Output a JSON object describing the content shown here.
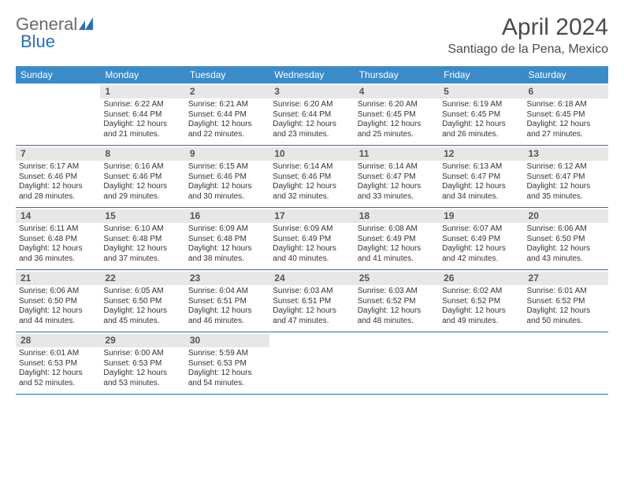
{
  "logo": {
    "general": "General",
    "blue": "Blue"
  },
  "title": "April 2024",
  "location": "Santiago de la Pena, Mexico",
  "colors": {
    "header_bg": "#3b8bc9",
    "header_fg": "#ffffff",
    "daynum_bg": "#e7e7e7",
    "row_border": "#2a6fb5",
    "text": "#333333"
  },
  "dow": [
    "Sunday",
    "Monday",
    "Tuesday",
    "Wednesday",
    "Thursday",
    "Friday",
    "Saturday"
  ],
  "weeks": [
    [
      {
        "empty": true
      },
      {
        "n": "1",
        "sr": "Sunrise: 6:22 AM",
        "ss": "Sunset: 6:44 PM",
        "d1": "Daylight: 12 hours",
        "d2": "and 21 minutes."
      },
      {
        "n": "2",
        "sr": "Sunrise: 6:21 AM",
        "ss": "Sunset: 6:44 PM",
        "d1": "Daylight: 12 hours",
        "d2": "and 22 minutes."
      },
      {
        "n": "3",
        "sr": "Sunrise: 6:20 AM",
        "ss": "Sunset: 6:44 PM",
        "d1": "Daylight: 12 hours",
        "d2": "and 23 minutes."
      },
      {
        "n": "4",
        "sr": "Sunrise: 6:20 AM",
        "ss": "Sunset: 6:45 PM",
        "d1": "Daylight: 12 hours",
        "d2": "and 25 minutes."
      },
      {
        "n": "5",
        "sr": "Sunrise: 6:19 AM",
        "ss": "Sunset: 6:45 PM",
        "d1": "Daylight: 12 hours",
        "d2": "and 26 minutes."
      },
      {
        "n": "6",
        "sr": "Sunrise: 6:18 AM",
        "ss": "Sunset: 6:45 PM",
        "d1": "Daylight: 12 hours",
        "d2": "and 27 minutes."
      }
    ],
    [
      {
        "n": "7",
        "sr": "Sunrise: 6:17 AM",
        "ss": "Sunset: 6:46 PM",
        "d1": "Daylight: 12 hours",
        "d2": "and 28 minutes."
      },
      {
        "n": "8",
        "sr": "Sunrise: 6:16 AM",
        "ss": "Sunset: 6:46 PM",
        "d1": "Daylight: 12 hours",
        "d2": "and 29 minutes."
      },
      {
        "n": "9",
        "sr": "Sunrise: 6:15 AM",
        "ss": "Sunset: 6:46 PM",
        "d1": "Daylight: 12 hours",
        "d2": "and 30 minutes."
      },
      {
        "n": "10",
        "sr": "Sunrise: 6:14 AM",
        "ss": "Sunset: 6:46 PM",
        "d1": "Daylight: 12 hours",
        "d2": "and 32 minutes."
      },
      {
        "n": "11",
        "sr": "Sunrise: 6:14 AM",
        "ss": "Sunset: 6:47 PM",
        "d1": "Daylight: 12 hours",
        "d2": "and 33 minutes."
      },
      {
        "n": "12",
        "sr": "Sunrise: 6:13 AM",
        "ss": "Sunset: 6:47 PM",
        "d1": "Daylight: 12 hours",
        "d2": "and 34 minutes."
      },
      {
        "n": "13",
        "sr": "Sunrise: 6:12 AM",
        "ss": "Sunset: 6:47 PM",
        "d1": "Daylight: 12 hours",
        "d2": "and 35 minutes."
      }
    ],
    [
      {
        "n": "14",
        "sr": "Sunrise: 6:11 AM",
        "ss": "Sunset: 6:48 PM",
        "d1": "Daylight: 12 hours",
        "d2": "and 36 minutes."
      },
      {
        "n": "15",
        "sr": "Sunrise: 6:10 AM",
        "ss": "Sunset: 6:48 PM",
        "d1": "Daylight: 12 hours",
        "d2": "and 37 minutes."
      },
      {
        "n": "16",
        "sr": "Sunrise: 6:09 AM",
        "ss": "Sunset: 6:48 PM",
        "d1": "Daylight: 12 hours",
        "d2": "and 38 minutes."
      },
      {
        "n": "17",
        "sr": "Sunrise: 6:09 AM",
        "ss": "Sunset: 6:49 PM",
        "d1": "Daylight: 12 hours",
        "d2": "and 40 minutes."
      },
      {
        "n": "18",
        "sr": "Sunrise: 6:08 AM",
        "ss": "Sunset: 6:49 PM",
        "d1": "Daylight: 12 hours",
        "d2": "and 41 minutes."
      },
      {
        "n": "19",
        "sr": "Sunrise: 6:07 AM",
        "ss": "Sunset: 6:49 PM",
        "d1": "Daylight: 12 hours",
        "d2": "and 42 minutes."
      },
      {
        "n": "20",
        "sr": "Sunrise: 6:06 AM",
        "ss": "Sunset: 6:50 PM",
        "d1": "Daylight: 12 hours",
        "d2": "and 43 minutes."
      }
    ],
    [
      {
        "n": "21",
        "sr": "Sunrise: 6:06 AM",
        "ss": "Sunset: 6:50 PM",
        "d1": "Daylight: 12 hours",
        "d2": "and 44 minutes."
      },
      {
        "n": "22",
        "sr": "Sunrise: 6:05 AM",
        "ss": "Sunset: 6:50 PM",
        "d1": "Daylight: 12 hours",
        "d2": "and 45 minutes."
      },
      {
        "n": "23",
        "sr": "Sunrise: 6:04 AM",
        "ss": "Sunset: 6:51 PM",
        "d1": "Daylight: 12 hours",
        "d2": "and 46 minutes."
      },
      {
        "n": "24",
        "sr": "Sunrise: 6:03 AM",
        "ss": "Sunset: 6:51 PM",
        "d1": "Daylight: 12 hours",
        "d2": "and 47 minutes."
      },
      {
        "n": "25",
        "sr": "Sunrise: 6:03 AM",
        "ss": "Sunset: 6:52 PM",
        "d1": "Daylight: 12 hours",
        "d2": "and 48 minutes."
      },
      {
        "n": "26",
        "sr": "Sunrise: 6:02 AM",
        "ss": "Sunset: 6:52 PM",
        "d1": "Daylight: 12 hours",
        "d2": "and 49 minutes."
      },
      {
        "n": "27",
        "sr": "Sunrise: 6:01 AM",
        "ss": "Sunset: 6:52 PM",
        "d1": "Daylight: 12 hours",
        "d2": "and 50 minutes."
      }
    ],
    [
      {
        "n": "28",
        "sr": "Sunrise: 6:01 AM",
        "ss": "Sunset: 6:53 PM",
        "d1": "Daylight: 12 hours",
        "d2": "and 52 minutes."
      },
      {
        "n": "29",
        "sr": "Sunrise: 6:00 AM",
        "ss": "Sunset: 6:53 PM",
        "d1": "Daylight: 12 hours",
        "d2": "and 53 minutes."
      },
      {
        "n": "30",
        "sr": "Sunrise: 5:59 AM",
        "ss": "Sunset: 6:53 PM",
        "d1": "Daylight: 12 hours",
        "d2": "and 54 minutes."
      },
      {
        "empty": true
      },
      {
        "empty": true
      },
      {
        "empty": true
      },
      {
        "empty": true
      }
    ]
  ]
}
